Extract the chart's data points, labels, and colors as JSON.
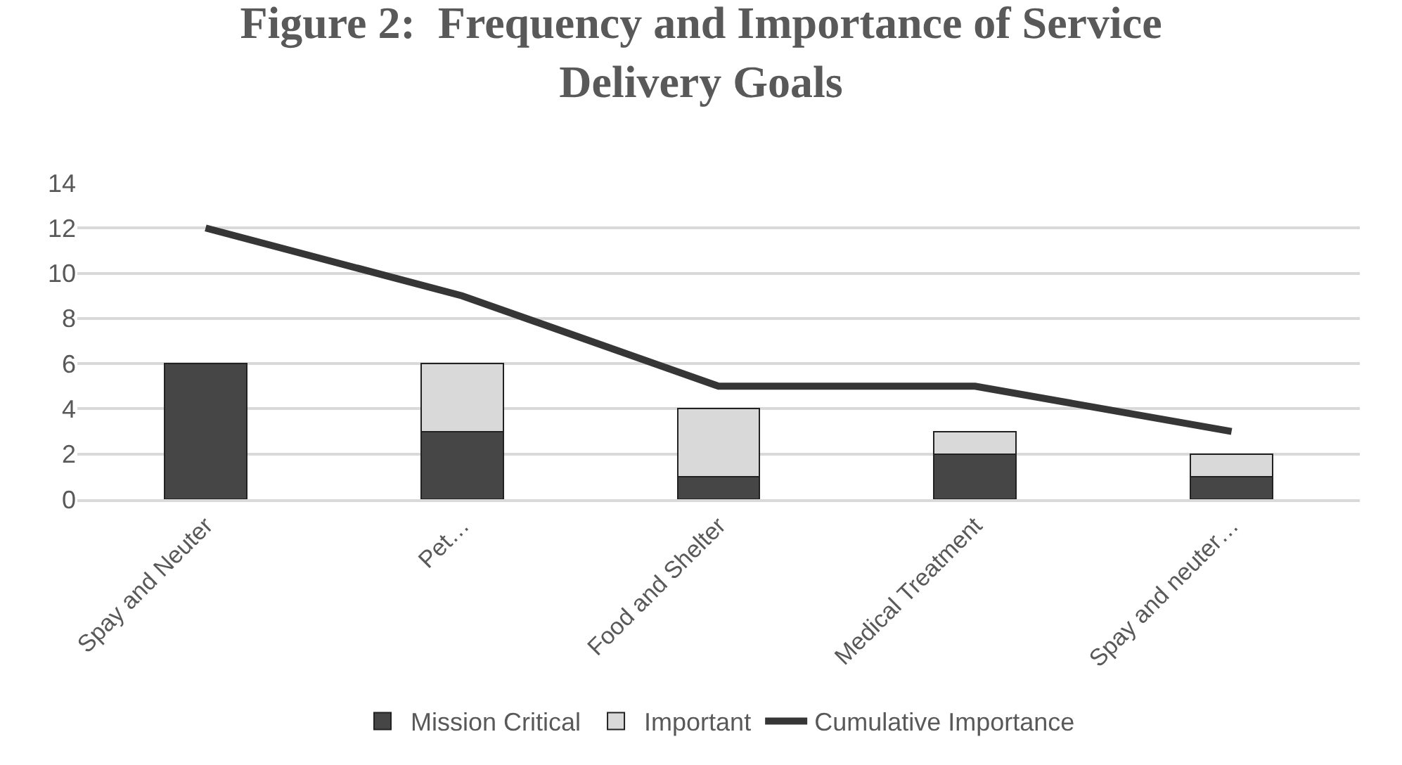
{
  "chart_data": {
    "type": "bar",
    "title": "Figure 2:  Frequency and Importance of Service Delivery Goals",
    "categories": [
      "Spay and Neuter",
      "Pet…",
      "Food and Shelter",
      "Medical Treatment",
      "Spay and neuter…"
    ],
    "stacked": true,
    "series": [
      {
        "name": "Mission Critical",
        "color": "#464646",
        "values": [
          6,
          3,
          1,
          2,
          1
        ]
      },
      {
        "name": "Important",
        "color": "#d9d9d9",
        "values": [
          null,
          3,
          3,
          1,
          1
        ]
      },
      {
        "name": "Cumulative Importance",
        "type": "line",
        "color": "#363636",
        "values": [
          12,
          9,
          5,
          5,
          3
        ]
      }
    ],
    "ylim": [
      0,
      14
    ],
    "yticks": [
      0,
      2,
      4,
      6,
      8,
      10,
      12,
      14
    ],
    "grid": "y",
    "legend": "bottom"
  }
}
